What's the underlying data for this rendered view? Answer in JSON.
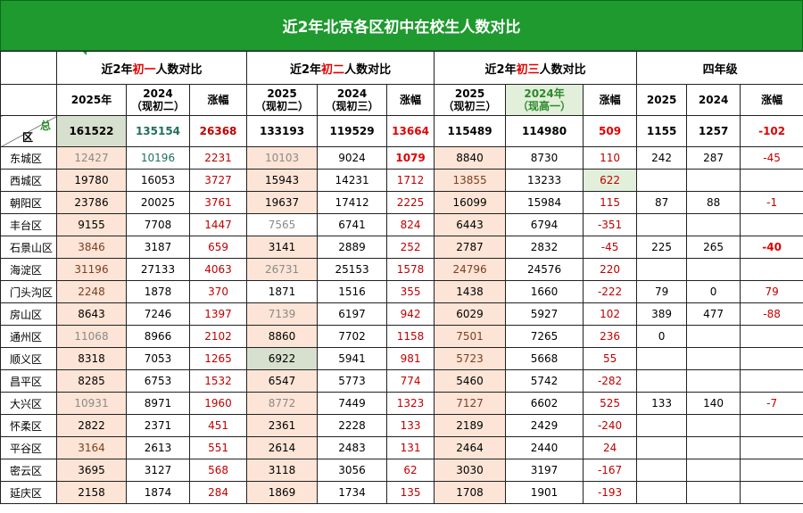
{
  "title": "近2年北京各区初中在校生人数对比",
  "groups": [
    {
      "pre": "近2年",
      "hl": "初一",
      "post": "人数对比"
    },
    {
      "pre": "近2年",
      "hl": "初二",
      "post": "人数对比"
    },
    {
      "pre": "近2年",
      "hl": "初三",
      "post": "人数对比"
    },
    {
      "pre": "",
      "hl": "",
      "post": "四年级"
    }
  ],
  "subheaders": [
    "2025年",
    "2024\n（现初二）",
    "涨幅",
    "2025\n（现初二）",
    "2024\n（现初三）",
    "涨幅",
    "2025\n（现初三）",
    "2024年\n（现高一）",
    "涨幅",
    "2025",
    "2024",
    "涨幅"
  ],
  "corner": {
    "top": "总",
    "bottom": "区"
  },
  "total": [
    "161522",
    "135154",
    "26368",
    "133193",
    "119529",
    "13664",
    "115489",
    "114980",
    "509",
    "1155",
    "1257",
    "-102"
  ],
  "rows": [
    {
      "district": "东城区",
      "values": [
        "12427",
        "10196",
        "2231",
        "10103",
        "9024",
        "1079",
        "8840",
        "8730",
        "110",
        "242",
        "287",
        "-45"
      ]
    },
    {
      "district": "西城区",
      "values": [
        "19780",
        "16053",
        "3727",
        "15943",
        "14231",
        "1712",
        "13855",
        "13233",
        "622",
        "",
        "",
        ""
      ]
    },
    {
      "district": "朝阳区",
      "values": [
        "23786",
        "20025",
        "3761",
        "19637",
        "17412",
        "2225",
        "16099",
        "15984",
        "115",
        "87",
        "88",
        "-1"
      ]
    },
    {
      "district": "丰台区",
      "values": [
        "9155",
        "7708",
        "1447",
        "7565",
        "6741",
        "824",
        "6443",
        "6794",
        "-351",
        "",
        "",
        ""
      ]
    },
    {
      "district": "石景山区",
      "values": [
        "3846",
        "3187",
        "659",
        "3141",
        "2889",
        "252",
        "2787",
        "2832",
        "-45",
        "225",
        "265",
        "-40"
      ]
    },
    {
      "district": "海淀区",
      "values": [
        "31196",
        "27133",
        "4063",
        "26731",
        "25153",
        "1578",
        "24796",
        "24576",
        "220",
        "",
        "",
        ""
      ]
    },
    {
      "district": "门头沟区",
      "values": [
        "2248",
        "1878",
        "370",
        "1871",
        "1516",
        "355",
        "1438",
        "1660",
        "-222",
        "79",
        "0",
        "79"
      ]
    },
    {
      "district": "房山区",
      "values": [
        "8643",
        "7246",
        "1397",
        "7139",
        "6197",
        "942",
        "6029",
        "5927",
        "102",
        "389",
        "477",
        "-88"
      ]
    },
    {
      "district": "通州区",
      "values": [
        "11068",
        "8966",
        "2102",
        "8860",
        "7702",
        "1158",
        "7501",
        "7265",
        "236",
        "0",
        "",
        ""
      ]
    },
    {
      "district": "顺义区",
      "values": [
        "8318",
        "7053",
        "1265",
        "6922",
        "5941",
        "981",
        "5723",
        "5668",
        "55",
        "",
        "",
        ""
      ]
    },
    {
      "district": "昌平区",
      "values": [
        "8285",
        "6753",
        "1532",
        "6547",
        "5773",
        "774",
        "5460",
        "5742",
        "-282",
        "",
        "",
        ""
      ]
    },
    {
      "district": "大兴区",
      "values": [
        "10931",
        "8971",
        "1960",
        "8772",
        "7449",
        "1323",
        "7127",
        "6602",
        "525",
        "133",
        "140",
        "-7"
      ]
    },
    {
      "district": "怀柔区",
      "values": [
        "2822",
        "2371",
        "451",
        "2361",
        "2228",
        "133",
        "2189",
        "2429",
        "-240",
        "",
        "",
        ""
      ]
    },
    {
      "district": "平谷区",
      "values": [
        "3164",
        "2613",
        "551",
        "2614",
        "2483",
        "131",
        "2464",
        "2440",
        "24",
        "",
        "",
        ""
      ]
    },
    {
      "district": "密云区",
      "values": [
        "3695",
        "3127",
        "568",
        "3118",
        "3056",
        "62",
        "3030",
        "3197",
        "-167",
        "",
        "",
        ""
      ]
    },
    {
      "district": "延庆区",
      "values": [
        "2158",
        "1874",
        "284",
        "1869",
        "1734",
        "135",
        "1708",
        "1901",
        "-193",
        "",
        "",
        ""
      ]
    }
  ],
  "colors": {
    "title_bg": "#1e9a2f",
    "pink_fill": "#fce4d6",
    "gray_green_fill": "#d7dfce",
    "light_green_fill": "#e2efda",
    "increase_red": "#c00000",
    "highlight_red": "#e00000",
    "teal_text": "#1f6f5f"
  }
}
